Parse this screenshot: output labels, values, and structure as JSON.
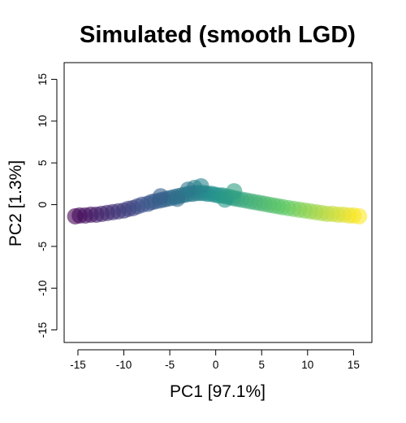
{
  "chart_data": {
    "type": "scatter",
    "title": "Simulated (smooth LGD)",
    "xlabel": "PC1 [97.1%]",
    "ylabel": "PC2 [1.3%]",
    "xlim": [
      -16.5,
      17
    ],
    "ylim": [
      -16.5,
      17
    ],
    "xticks": [
      -15,
      -10,
      -5,
      0,
      5,
      10,
      15
    ],
    "yticks": [
      -15,
      -10,
      -5,
      0,
      5,
      10,
      15
    ],
    "xtick_labels": [
      "-15",
      "-10",
      "-5",
      "0",
      "5",
      "10",
      "15"
    ],
    "ytick_labels": [
      "-15",
      "-10",
      "-5",
      "0",
      "5",
      "10",
      "15"
    ],
    "grid": false,
    "legend": "none",
    "color_scale": "viridis (by PC1)",
    "colors": [
      "#440154",
      "#3b528b",
      "#21918c",
      "#5ec962",
      "#fde725"
    ],
    "series": [
      {
        "x": [
          -15.3,
          -14.8,
          -14.2,
          -13.6,
          -13.0,
          -12.4,
          -11.8,
          -11.2,
          -10.6,
          -10.0,
          -9.5,
          -9.0,
          -8.5,
          -8.0,
          -7.4,
          -7.0,
          -6.6,
          -6.1,
          -5.7,
          -5.3,
          -4.9,
          -4.5,
          -4.1,
          -3.7,
          -3.3,
          -2.9,
          -2.5,
          -2.1,
          -1.7,
          -1.3,
          -0.9,
          -0.5,
          -0.1,
          0.3,
          0.7,
          1.1,
          1.5,
          1.9,
          2.3,
          2.8,
          3.3,
          3.8,
          4.3,
          4.8,
          5.3,
          5.8,
          6.3,
          6.8,
          7.3,
          7.9,
          8.5,
          9.1,
          9.7,
          10.3,
          10.9,
          11.5,
          12.1,
          12.7,
          13.3,
          13.9,
          14.5,
          15.0,
          15.6,
          -6.0,
          -4.2,
          -2.3,
          -1.6,
          -3.0,
          1.0,
          2.0
        ],
        "y": [
          -1.4,
          -1.3,
          -1.3,
          -1.2,
          -1.2,
          -1.1,
          -1.0,
          -0.9,
          -0.8,
          -0.7,
          -0.5,
          -0.4,
          -0.2,
          0.0,
          0.1,
          0.3,
          0.4,
          0.5,
          0.6,
          0.7,
          0.8,
          0.9,
          1.0,
          1.1,
          1.2,
          1.3,
          1.3,
          1.4,
          1.4,
          1.4,
          1.3,
          1.3,
          1.2,
          1.1,
          1.1,
          1.0,
          0.9,
          0.8,
          0.7,
          0.6,
          0.5,
          0.4,
          0.3,
          0.2,
          0.1,
          0.0,
          -0.1,
          -0.2,
          -0.3,
          -0.4,
          -0.5,
          -0.6,
          -0.7,
          -0.8,
          -0.9,
          -1.0,
          -1.1,
          -1.1,
          -1.2,
          -1.2,
          -1.3,
          -1.3,
          -1.4,
          1.0,
          0.7,
          2.0,
          2.2,
          1.8,
          0.6,
          1.6
        ]
      }
    ]
  }
}
